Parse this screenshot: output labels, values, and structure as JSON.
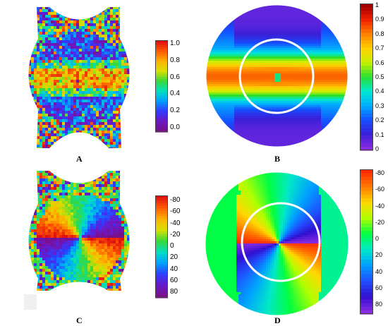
{
  "panels": [
    {
      "id": "A",
      "label": "A"
    },
    {
      "id": "B",
      "label": "B"
    },
    {
      "id": "C",
      "label": "C"
    },
    {
      "id": "D",
      "label": "D"
    }
  ],
  "colorbars": {
    "A": {
      "ticks": [
        "1.0",
        "0.8",
        "0.6",
        "0.4",
        "0.2",
        "0.0"
      ]
    },
    "B": {
      "ticks": [
        "1",
        "0.9",
        "0.8",
        "0.7",
        "0.6",
        "0.5",
        "0.4",
        "0.3",
        "0.2",
        "0.1",
        "0"
      ]
    },
    "C": {
      "ticks": [
        "-80",
        "-60",
        "-40",
        "-20",
        "0",
        "20",
        "40",
        "60",
        "80"
      ]
    },
    "D": {
      "ticks": [
        "-80",
        "-60",
        "-40",
        "-20",
        "0",
        "20",
        "40",
        "60",
        "80"
      ]
    }
  },
  "colors": {
    "jet_stops": [
      "#7a0f8a",
      "#6a19c8",
      "#2f3cff",
      "#00a0ff",
      "#00e0c0",
      "#38d838",
      "#d8e000",
      "#ffb000",
      "#ff5a00",
      "#e01010"
    ],
    "cb_b_stops": [
      "#8a2be2",
      "#3a1fd8",
      "#1450ff",
      "#00b0ff",
      "#00e8d0",
      "#28e030",
      "#c8f000",
      "#ffd000",
      "#ff8000",
      "#f02000",
      "#a00000"
    ],
    "cb_d_stops": [
      "#ff2a00",
      "#ff7a00",
      "#ffd800",
      "#b0ff00",
      "#00ff40",
      "#00e8c8",
      "#00a0ff",
      "#2050ff",
      "#3010d0",
      "#8a2be2"
    ]
  }
}
